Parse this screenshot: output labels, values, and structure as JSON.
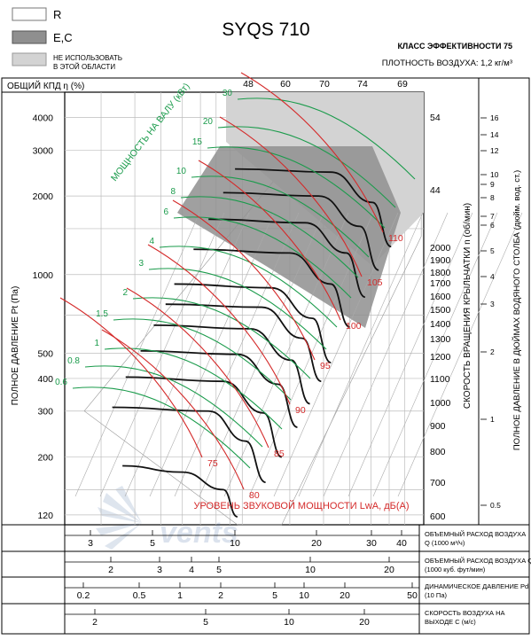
{
  "legend": [
    {
      "label": "R",
      "swatch": "#ffffff"
    },
    {
      "label": "E,C",
      "swatch": "#8f8f8f"
    },
    {
      "label": "НЕ ИСПОЛЬЗОВАТЬ\nВ ЭТОЙ ОБЛАСТИ",
      "swatch": "#d3d3d3"
    }
  ],
  "title": "SYQS 710",
  "efficiency_class": "КЛАСС ЭФФЕКТИВНОСТИ 75",
  "air_density": "ПЛОТНОСТЬ ВОЗДУХА: 1,2 кг/м³",
  "efficiency_axis_label": "ОБЩИЙ КПД η (%)",
  "efficiency_ticks": [
    "48",
    "60",
    "70",
    "74",
    "69"
  ],
  "pressure_axis_label": "ПОЛНОЕ ДАВЛЕНИЕ Pt (Па)",
  "pressure_ticks": [
    "4000",
    "3000",
    "2000",
    "1000",
    "500",
    "400",
    "300",
    "200",
    "120"
  ],
  "speed_axis_label": "СКОРОСТЬ ВРАЩЕНИЯ КРЫЛЬЧАТКИ  n (об/мин)",
  "speed_ticks": [
    "54",
    "44",
    "2000",
    "1900",
    "1800",
    "1700",
    "1600",
    "1500",
    "1400",
    "1300",
    "1200",
    "1100",
    "1000",
    "900",
    "800",
    "700",
    "600"
  ],
  "inch_axis_label": "ПОЛНОЕ ДАВЛЕНИЕ В ДЮЙМАХ ВОДЯНОГО СТОЛБА (дюйм. вод. ст.)",
  "inch_ticks": [
    "16",
    "14",
    "12",
    "10",
    "9",
    "8",
    "7",
    "6",
    "5",
    "4",
    "3",
    "2",
    "1",
    "0.5"
  ],
  "power_label": "МОЩНОСТЬ НА ВАЛУ (кВт)",
  "power_values": [
    "30",
    "20",
    "15",
    "10",
    "8",
    "6",
    "4",
    "3",
    "2",
    "1.5",
    "1",
    "0.8",
    "0.6"
  ],
  "sound_label": "УРОВЕНЬ ЗВУКОВОЙ МОЩНОСТИ LwA, дБ(А)",
  "sound_values": [
    "110",
    "105",
    "100",
    "95",
    "90",
    "85",
    "80",
    "75"
  ],
  "bottom_scales": [
    {
      "label": "ОБЪЕМНЫЙ РАСХОД ВОЗДУХА Q (1000 м³/ч)",
      "ticks": [
        "3",
        "5",
        "10",
        "20",
        "30",
        "40"
      ]
    },
    {
      "label": "ОБЪЕМНЫЙ РАСХОД ВОЗДУХА Q (1000 куб. фут/мин)",
      "ticks": [
        "2",
        "3",
        "4",
        "5",
        "10",
        "20"
      ]
    },
    {
      "label": "ДИНАМИЧЕСКОЕ ДАВЛЕНИЕ Pd (10 Па)",
      "ticks": [
        "0.2",
        "0.5",
        "1",
        "2",
        "5",
        "10",
        "20",
        "50"
      ]
    },
    {
      "label": "СКОРОСТЬ ВОЗДУХА НА ВЫХОДЕ C (м/с)",
      "ticks": [
        "2",
        "5",
        "10",
        "20"
      ]
    }
  ],
  "watermark": "vents",
  "colors": {
    "fan_curve": "#111111",
    "power": "#1a9b4b",
    "sound": "#d42a2a",
    "shaded": "#8f8f8f",
    "grey_zone": "#d3d3d3"
  },
  "chart_data": {
    "type": "line",
    "xlabel": "ОБЪЕМНЫЙ РАСХОД ВОЗДУХА Q (1000 м³/ч)",
    "ylabel": "ПОЛНОЕ ДАВЛЕНИЕ Pt (Па)",
    "x_scale": "log",
    "y_scale": "log",
    "xlim": [
      2.2,
      47
    ],
    "ylim": [
      110,
      5000
    ],
    "fan_curves": [
      {
        "rpm": 600,
        "points": [
          [
            9.6,
            118
          ],
          [
            8.5,
            150
          ],
          [
            6.0,
            175
          ],
          [
            3.6,
            185
          ]
        ]
      },
      {
        "rpm": 700,
        "points": [
          [
            3.3,
            310
          ],
          [
            7.5,
            300
          ],
          [
            10.3,
            230
          ],
          [
            12.2,
            160
          ]
        ]
      },
      {
        "rpm": 800,
        "points": [
          [
            3.7,
            405
          ],
          [
            8.5,
            390
          ],
          [
            12.0,
            295
          ],
          [
            14.0,
            200
          ]
        ]
      },
      {
        "rpm": 900,
        "points": [
          [
            4.2,
            510
          ],
          [
            9.6,
            495
          ],
          [
            13.6,
            380
          ],
          [
            16.0,
            260
          ]
        ]
      },
      {
        "rpm": 1000,
        "points": [
          [
            4.7,
            640
          ],
          [
            10.7,
            620
          ],
          [
            15.2,
            470
          ],
          [
            17.8,
            320
          ]
        ]
      },
      {
        "rpm": 1100,
        "points": [
          [
            5.2,
            770
          ],
          [
            11.8,
            750
          ],
          [
            16.7,
            570
          ],
          [
            19.6,
            390
          ]
        ]
      },
      {
        "rpm": 1200,
        "points": [
          [
            5.6,
            920
          ],
          [
            12.8,
            890
          ],
          [
            18.2,
            680
          ],
          [
            21.3,
            460
          ]
        ]
      },
      {
        "rpm": 1400,
        "points": [
          [
            6.6,
            1250
          ],
          [
            15.0,
            1210
          ],
          [
            21.3,
            920
          ],
          [
            25.0,
            630
          ]
        ]
      },
      {
        "rpm": 1600,
        "points": [
          [
            7.5,
            1630
          ],
          [
            17.1,
            1580
          ],
          [
            24.3,
            1210
          ],
          [
            28.5,
            820
          ]
        ]
      },
      {
        "rpm": 1800,
        "points": [
          [
            8.5,
            2060
          ],
          [
            19.2,
            2000
          ],
          [
            27.3,
            1530
          ],
          [
            32.0,
            1040
          ]
        ]
      },
      {
        "rpm": 2000,
        "points": [
          [
            9.4,
            2540
          ],
          [
            21.3,
            2470
          ],
          [
            30.4,
            1890
          ],
          [
            35.6,
            1280
          ]
        ]
      }
    ]
  }
}
